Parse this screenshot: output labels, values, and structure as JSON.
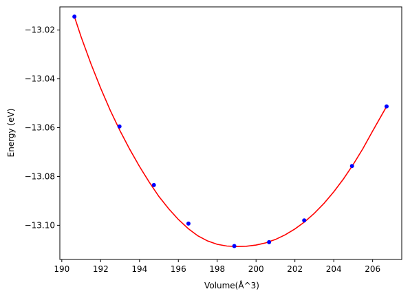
{
  "chart_data": {
    "type": "scatter",
    "xlabel": "Volume(Å^3)",
    "ylabel": "Energy (eV)",
    "xlim": [
      189.9,
      207.5
    ],
    "ylim": [
      -13.114,
      -13.0105
    ],
    "xticks": [
      190,
      192,
      194,
      196,
      198,
      200,
      202,
      204,
      206
    ],
    "yticks": [
      -13.02,
      -13.04,
      -13.06,
      -13.08,
      -13.1
    ],
    "ytick_labels": [
      "−13.02",
      "−13.04",
      "−13.06",
      "−13.08",
      "−13.10"
    ],
    "grid": false,
    "series": [
      {
        "kind": "points",
        "color": "#0000ff",
        "x": [
          190.65,
          192.97,
          194.74,
          196.52,
          198.88,
          200.67,
          202.48,
          204.94,
          206.72
        ],
        "y": [
          -13.0145,
          -13.0595,
          -13.0835,
          -13.0993,
          -13.1085,
          -13.1069,
          -13.098,
          -13.0757,
          -13.0513
        ]
      },
      {
        "kind": "fit-curve",
        "color": "#ff0000",
        "x": [
          190.65,
          191.0,
          191.5,
          192.0,
          192.5,
          193.0,
          193.5,
          194.0,
          194.5,
          195.0,
          195.5,
          196.0,
          196.5,
          197.0,
          197.5,
          198.0,
          198.5,
          199.0,
          199.5,
          200.0,
          200.5,
          201.0,
          201.5,
          202.0,
          202.5,
          203.0,
          203.5,
          204.0,
          204.5,
          205.0,
          205.5,
          206.0,
          206.72
        ],
        "y": [
          -13.0145,
          -13.0229,
          -13.0338,
          -13.0438,
          -13.053,
          -13.0613,
          -13.0689,
          -13.0759,
          -13.0823,
          -13.0882,
          -13.0932,
          -13.0976,
          -13.1013,
          -13.1043,
          -13.1064,
          -13.1078,
          -13.1085,
          -13.1087,
          -13.1086,
          -13.1081,
          -13.1072,
          -13.1058,
          -13.1039,
          -13.1015,
          -13.0986,
          -13.0951,
          -13.091,
          -13.0863,
          -13.081,
          -13.0751,
          -13.0686,
          -13.0614,
          -13.0513
        ]
      }
    ]
  }
}
